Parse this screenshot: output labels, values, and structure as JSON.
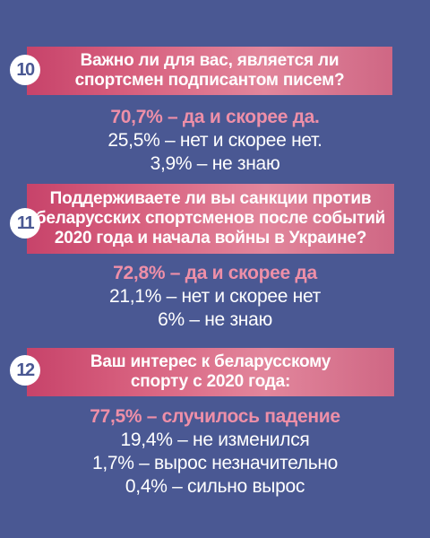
{
  "questions": [
    {
      "number": "10",
      "lines": [
        "Важно ли для вас, является ли",
        "спортсмен подписантом писем?"
      ],
      "answers": [
        "70,7% – да и скорее да.",
        "25,5% – нет и скорее нет.",
        "3,9% – не знаю"
      ]
    },
    {
      "number": "11",
      "lines": [
        "Поддерживаете ли вы санкции против",
        "беларусских спортсменов после событий",
        "2020 года и начала войны в Украине?"
      ],
      "answers": [
        "72,8% – да и скорее да",
        "21,1% – нет и скорее нет",
        "6% – не знаю"
      ]
    },
    {
      "number": "12",
      "lines": [
        "Ваш интерес к беларусскому",
        "спорту с 2020 года:"
      ],
      "answers": [
        "77,5% – случилось падение",
        "19,4% – не изменился",
        "1,7% – вырос незначительно",
        "0,4% – сильно вырос"
      ]
    }
  ],
  "colors": {
    "background": "#4a5893",
    "accent": "#ee8fa8",
    "bar": "#d8617f"
  }
}
